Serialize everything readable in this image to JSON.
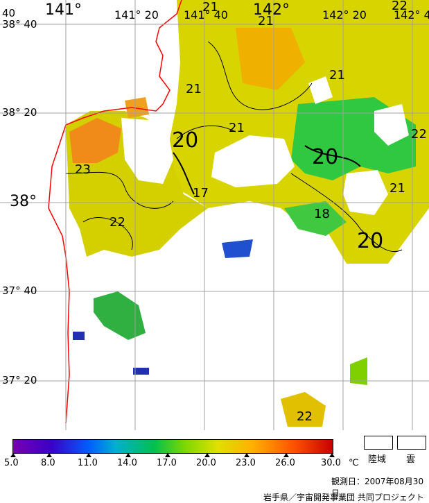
{
  "map": {
    "lon_labels": [
      "141°",
      "141° 20",
      "141° 40",
      "142°",
      "142° 20",
      "142° 4"
    ],
    "lat_labels": [
      "38° 40",
      "38° 20",
      "38°",
      "37° 40",
      "37° 20"
    ],
    "corner_label": "40",
    "contour_labels": [
      "21",
      "21",
      "21",
      "21",
      "21",
      "21",
      "22",
      "22",
      "22",
      "23",
      "20",
      "20",
      "20",
      "17",
      "18",
      "22"
    ]
  },
  "legend": {
    "tick_labels": [
      "5.0",
      "8.0",
      "11.0",
      "14.0",
      "17.0",
      "20.0",
      "23.0",
      "26.0",
      "30.0"
    ],
    "unit": "℃",
    "land_label": "陸域",
    "cloud_label": "雲",
    "colors": {
      "low": "#7a00b0",
      "mid": "#80d800",
      "high": "#c80000"
    }
  },
  "footer": {
    "date": "観測日：2007年08月30日",
    "credit": "岩手県／宇宙開発事業団  共同プロジェクト"
  }
}
